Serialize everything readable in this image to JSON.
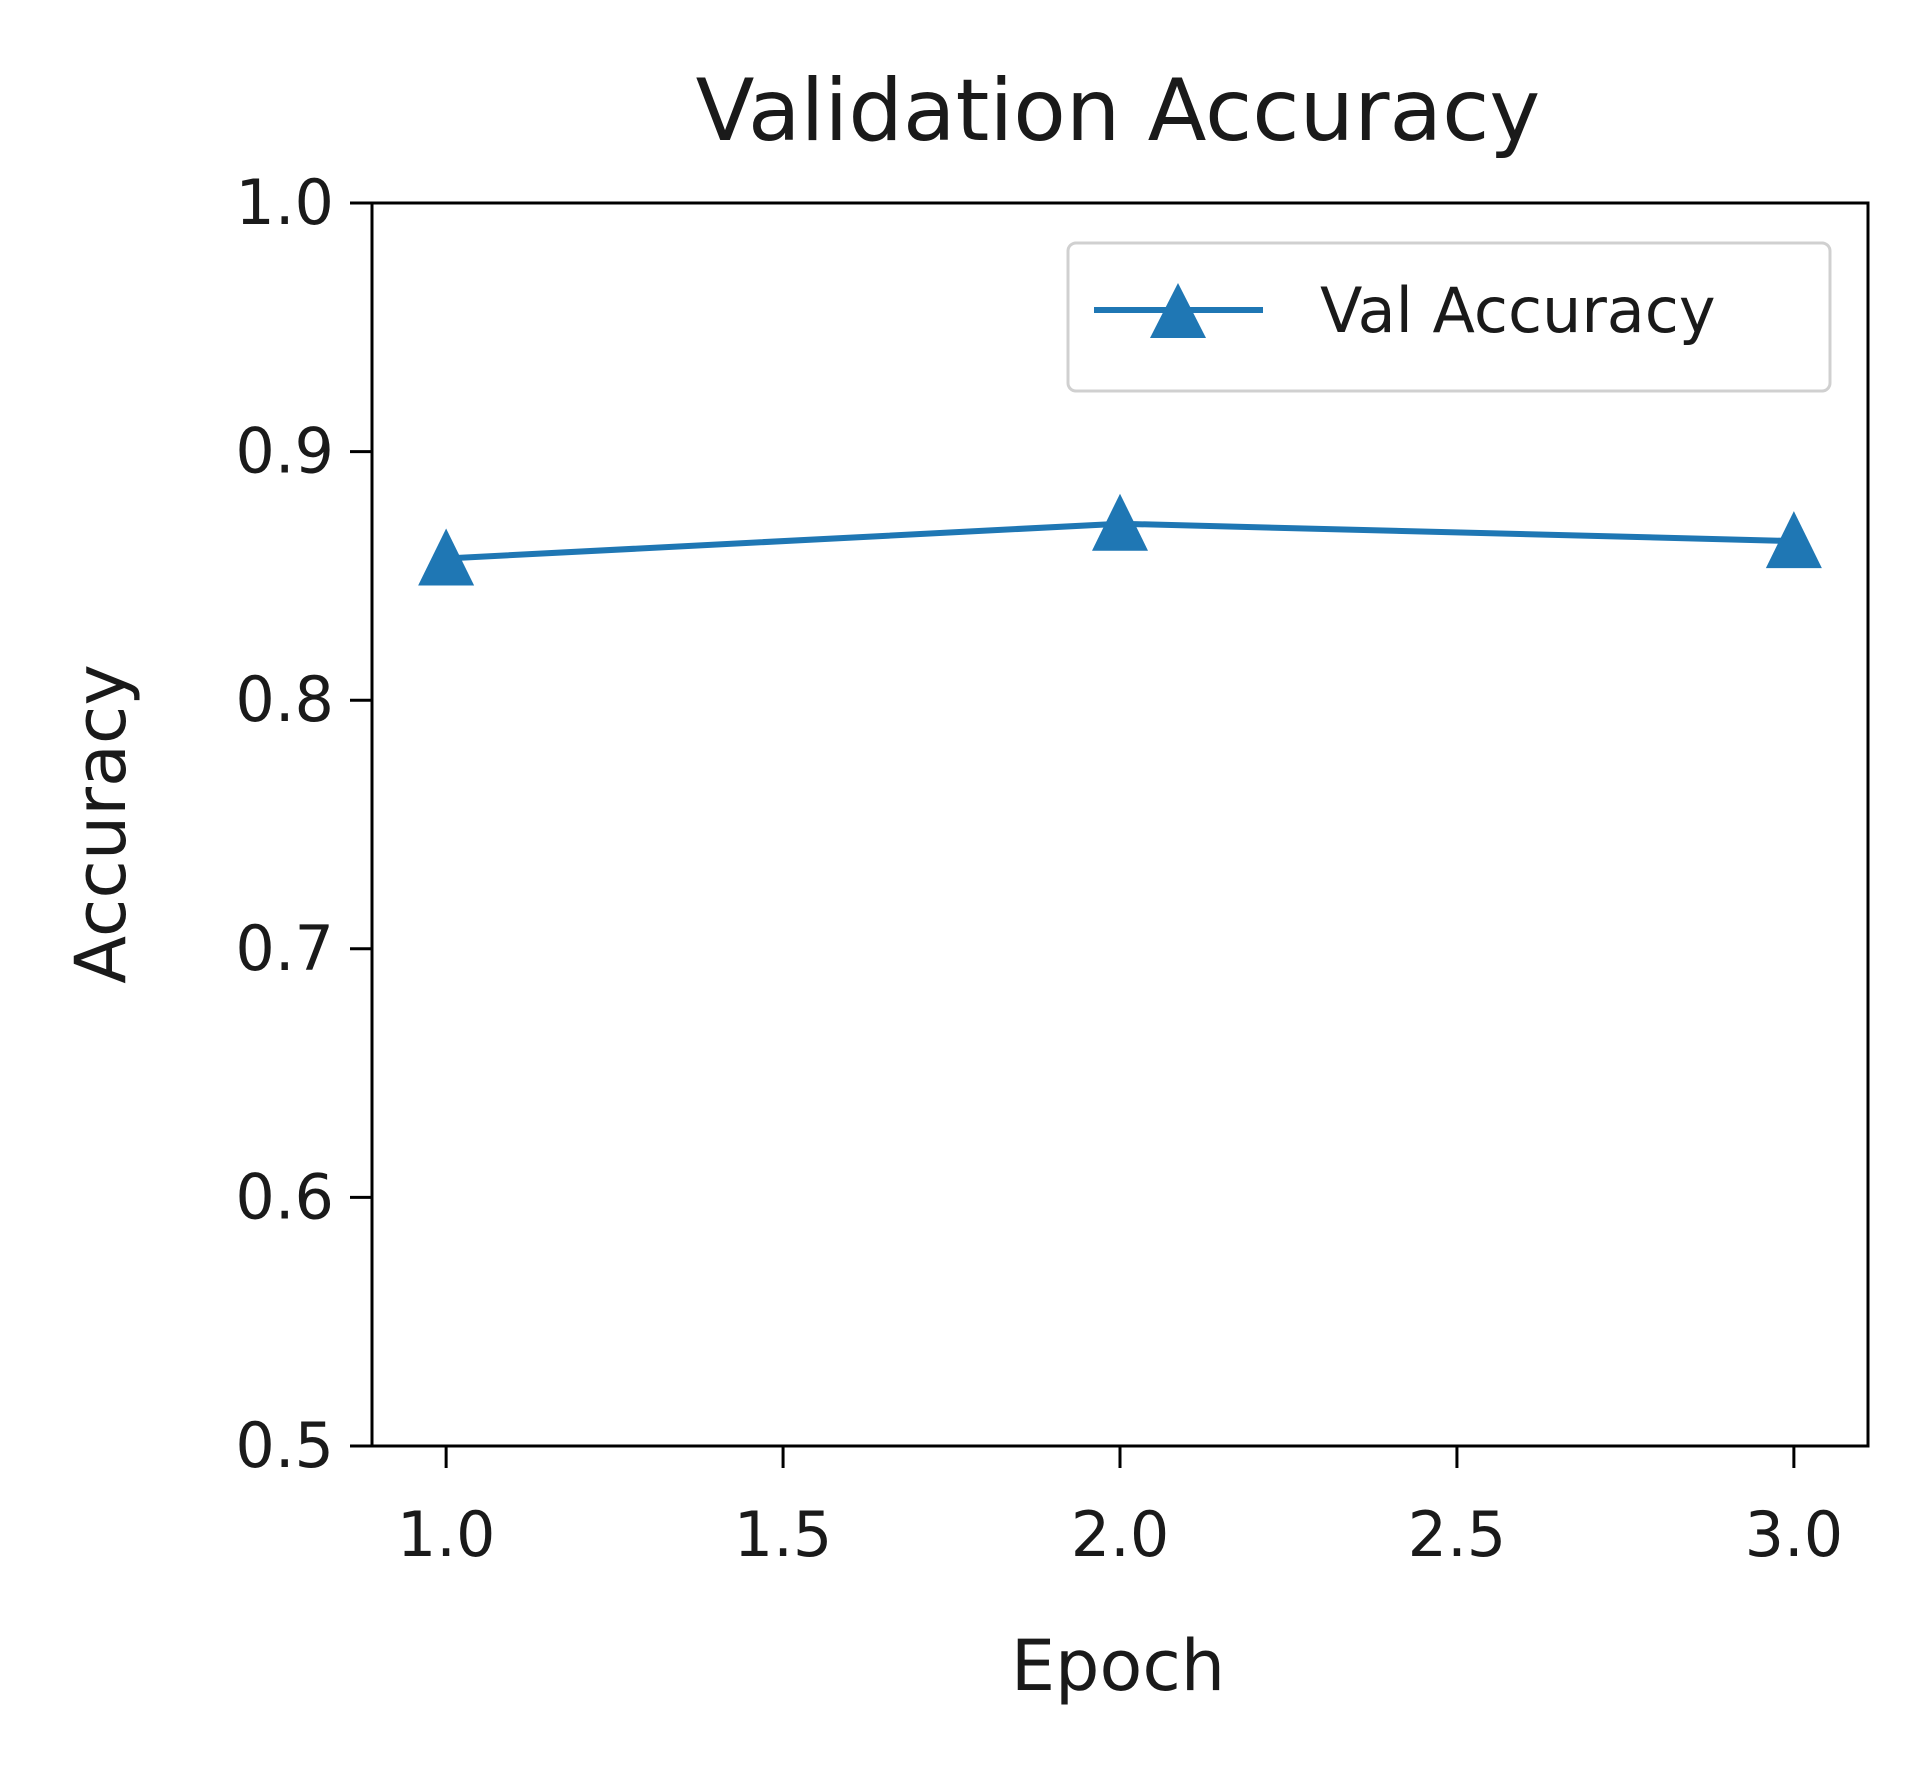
{
  "chart_data": {
    "type": "line",
    "title": "Validation Accuracy",
    "xlabel": "Epoch",
    "ylabel": "Accuracy",
    "x": [
      1,
      2,
      3
    ],
    "series": [
      {
        "name": "Val Accuracy",
        "values": [
          0.857,
          0.871,
          0.864
        ],
        "color": "#1f77b4",
        "marker": "triangle-up"
      }
    ],
    "xlim": [
      0.89,
      3.11
    ],
    "ylim": [
      0.5,
      1.0
    ],
    "xticks": [
      "1.0",
      "1.5",
      "2.0",
      "2.5",
      "3.0"
    ],
    "yticks": [
      "0.5",
      "0.6",
      "0.7",
      "0.8",
      "0.9",
      "1.0"
    ],
    "grid": false,
    "legend_position": "upper right"
  }
}
